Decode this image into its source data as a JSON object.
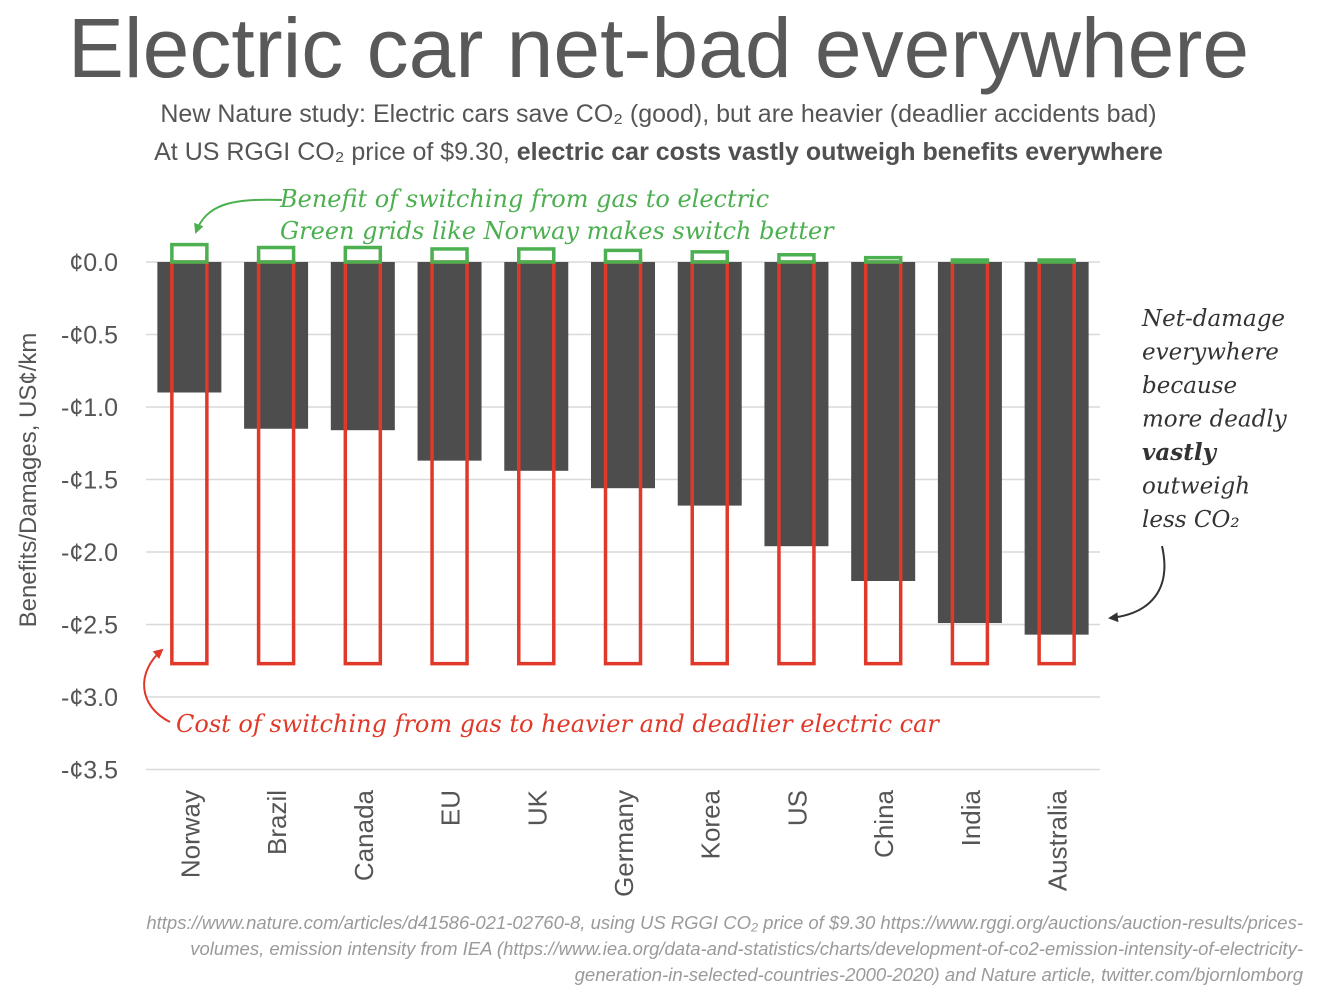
{
  "header": {
    "title": "Electric car net-bad everywhere",
    "subtitle1": "New Nature study: Electric cars save CO₂ (good), but are heavier (deadlier accidents bad)",
    "subtitle2_prefix": "At US RGGI CO₂ price of $9.30, ",
    "subtitle2_bold": "electric car costs vastly outweigh benefits everywhere"
  },
  "chart_data": {
    "type": "bar",
    "ylabel": "Benefits/Damages, US¢/km",
    "ylim": [
      -3.5,
      0.0
    ],
    "yticks": [
      0.0,
      -0.5,
      -1.0,
      -1.5,
      -2.0,
      -2.5,
      -3.0,
      -3.5
    ],
    "ytick_labels": [
      "¢0.0",
      "-¢0.5",
      "-¢1.0",
      "-¢1.5",
      "-¢2.0",
      "-¢2.5",
      "-¢3.0",
      "-¢3.5"
    ],
    "grid": true,
    "categories": [
      "Norway",
      "Brazil",
      "Canada",
      "EU",
      "UK",
      "Germany",
      "Korea",
      "US",
      "China",
      "India",
      "Australia"
    ],
    "series": [
      {
        "name": "",
        "role": "benefit",
        "color": "#4caf50",
        "values": [
          0.12,
          0.1,
          0.1,
          0.09,
          0.09,
          0.08,
          0.07,
          0.05,
          0.03,
          0.01,
          0.01
        ]
      },
      {
        "name": "",
        "role": "cost",
        "color": "#e0392a",
        "values": [
          -2.77,
          -2.77,
          -2.77,
          -2.77,
          -2.77,
          -2.77,
          -2.77,
          -2.77,
          -2.77,
          -2.77,
          -2.77
        ]
      },
      {
        "name": "",
        "role": "net",
        "color": "#4d4d4d",
        "values": [
          -0.9,
          -1.15,
          -1.16,
          -1.37,
          -1.44,
          -1.56,
          -1.68,
          -1.96,
          -2.2,
          -2.49,
          -2.57
        ]
      }
    ],
    "annotations": {
      "benefit_line1": "Benefit of switching from gas to electric",
      "benefit_line2": "Green grids like Norway makes switch better",
      "cost": "Cost of switching from gas to heavier and deadlier electric car",
      "net_lines": [
        "Net-damage",
        "everywhere",
        "because",
        "more deadly",
        "vastly",
        "outweigh",
        "less CO₂"
      ]
    }
  },
  "colors": {
    "net": "#4d4d4d",
    "cost": "#e0392a",
    "benefit": "#4caf50",
    "annotation_text": "#333333",
    "grid": "#d9d9d9"
  },
  "footer": {
    "source": "https://www.nature.com/articles/d41586-021-02760-8, using US RGGI CO₂ price of $9.30 https://www.rggi.org/auctions/auction-results/prices-volumes, emission intensity from IEA (https://www.iea.org/data-and-statistics/charts/development-of-co2-emission-intensity-of-electricity-generation-in-selected-countries-2000-2020) and Nature article, twitter.com/bjornlomborg"
  }
}
